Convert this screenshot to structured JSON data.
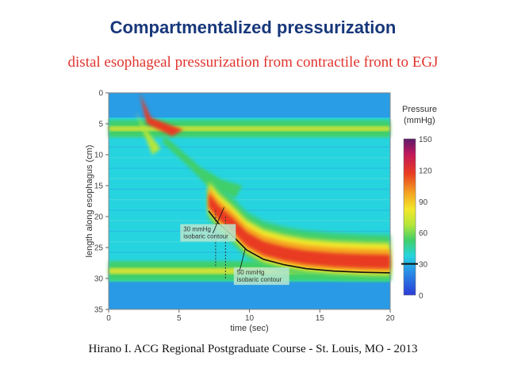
{
  "slide": {
    "title": "Compartmentalized pressurization",
    "subtitle": "distal esophageal pressurization from contractile front to EGJ",
    "citation": "Hirano I. ACG Regional Postgraduate Course - St. Louis, MO - 2013"
  },
  "chart_data": {
    "type": "heatmap",
    "xlabel": "time (sec)",
    "ylabel": "length along esophagus (cm)",
    "xlim": [
      0,
      20
    ],
    "ylim": [
      0,
      35
    ],
    "x_ticks": [
      "0",
      "5",
      "10",
      "15",
      "20"
    ],
    "y_ticks": [
      "0",
      "5",
      "10",
      "15",
      "20",
      "25",
      "30",
      "35"
    ],
    "colorbar": {
      "title_line1": "Pressure",
      "title_line2": "(mmHg)",
      "range": [
        0,
        150
      ],
      "ticks": [
        "150",
        "120",
        "90",
        "60",
        "30",
        "0"
      ],
      "contour_level": 30,
      "colors": [
        "#2b3bd6",
        "#2a8fe6",
        "#26d4e0",
        "#3fcf6a",
        "#b5e63a",
        "#f2e82a",
        "#f5a623",
        "#e83b20",
        "#c2185b",
        "#5b1a6b"
      ]
    },
    "annotations": [
      {
        "line1": "30 mmHg",
        "line2": "isobaric contour",
        "x": 5.2,
        "y": 22.5
      },
      {
        "line1": "50 mmHg",
        "line2": "isobaric contour",
        "x": 9.0,
        "y": 29.5
      }
    ],
    "contractile_front": {
      "x": [
        7.1,
        7.8,
        8.8,
        9.8,
        11,
        12.5,
        14,
        16,
        18,
        20
      ],
      "y": [
        17.5,
        19.5,
        21.5,
        23.8,
        25.3,
        26.2,
        26.8,
        27.2,
        27.4,
        27.5
      ]
    },
    "upper_sphincter_band": {
      "x": [
        0,
        20
      ],
      "y": 5.8
    },
    "egj_band": {
      "x": [
        0,
        20
      ],
      "y": 28.8
    },
    "swallow_marker_x": 2.5
  }
}
